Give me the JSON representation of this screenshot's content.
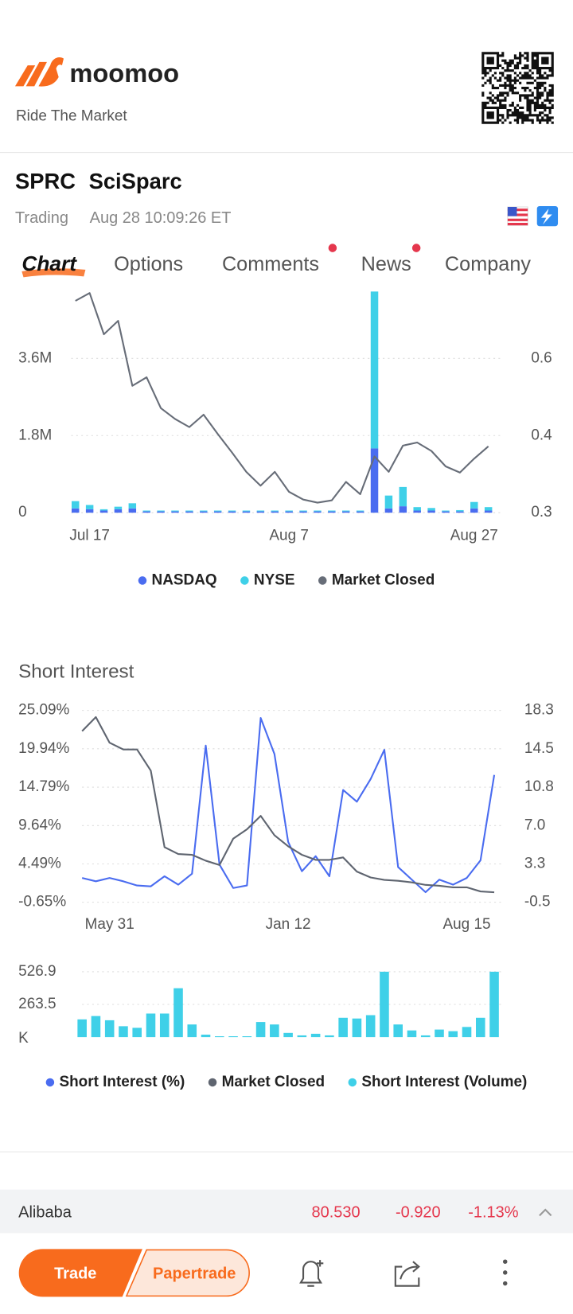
{
  "header": {
    "brand": "moomoo",
    "tagline": "Ride The Market"
  },
  "stock": {
    "symbol": "SPRC",
    "name": "SciSparc",
    "status": "Trading",
    "time": "Aug 28 10:09:26 ET"
  },
  "tabs": [
    "Chart",
    "Options",
    "Comments",
    "News",
    "Company"
  ],
  "chart_data": [
    {
      "type": "bar",
      "stacked": true,
      "categories": [
        null,
        "Jul 17",
        null,
        null,
        null,
        null,
        null,
        null,
        null,
        null,
        null,
        null,
        null,
        null,
        null,
        "Aug 7",
        null,
        null,
        null,
        null,
        null,
        null,
        null,
        null,
        null,
        null,
        null,
        null,
        "Aug 27",
        null
      ],
      "series": [
        {
          "name": "NASDAQ",
          "color": "#4a6cf0",
          "values": [
            100000,
            80000,
            50000,
            80000,
            100000,
            30000,
            30000,
            30000,
            30000,
            30000,
            30000,
            30000,
            30000,
            30000,
            30000,
            30000,
            30000,
            30000,
            30000,
            30000,
            30000,
            1500000,
            100000,
            150000,
            50000,
            50000,
            30000,
            30000,
            100000,
            50000
          ]
        },
        {
          "name": "NYSE",
          "color": "#3fd0e8",
          "values": [
            170000,
            100000,
            30000,
            60000,
            120000,
            20000,
            20000,
            20000,
            20000,
            20000,
            20000,
            20000,
            20000,
            20000,
            20000,
            20000,
            20000,
            20000,
            20000,
            20000,
            20000,
            3660000,
            300000,
            450000,
            80000,
            60000,
            20000,
            30000,
            150000,
            80000
          ]
        },
        {
          "name": "Market Closed",
          "color": "#676d78",
          "type": "line",
          "axis": "y2",
          "values": [
            0.755,
            0.776,
            0.665,
            0.701,
            0.529,
            0.551,
            0.471,
            0.443,
            0.422,
            0.454,
            0.404,
            0.378,
            0.353,
            0.335,
            0.353,
            0.327,
            0.317,
            0.313,
            0.316,
            0.34,
            0.324,
            0.373,
            0.353,
            0.387,
            0.391,
            0.38,
            0.36,
            0.352,
            0.37,
            0.386
          ]
        }
      ],
      "ylim": [
        0,
        5160000
      ],
      "yticks": [
        0,
        {
          "value": 1800000,
          "label": "1.8M"
        },
        {
          "value": 3600000,
          "label": "3.6M"
        }
      ],
      "y2lim": [
        0.3,
        0.78
      ],
      "y2ticks": [
        0.3,
        0.4,
        0.6
      ],
      "grid": true
    },
    {
      "type": "line",
      "title": "Short Interest",
      "categories": [
        null,
        null,
        "May 31",
        null,
        null,
        null,
        null,
        null,
        null,
        null,
        null,
        null,
        null,
        null,
        null,
        "Jan 12",
        null,
        null,
        null,
        null,
        null,
        null,
        null,
        null,
        null,
        null,
        null,
        null,
        "Aug 15",
        null,
        null
      ],
      "series": [
        {
          "name": "Short Interest (%)",
          "color": "#4a6cf0",
          "values": [
            2.61,
            2.16,
            2.61,
            2.16,
            1.6,
            1.49,
            2.83,
            1.71,
            3.17,
            20.37,
            4.41,
            1.26,
            1.6,
            24.08,
            19.25,
            7.44,
            3.51,
            5.53,
            2.83,
            14.41,
            12.84,
            15.87,
            19.81,
            4.07,
            2.38,
            0.7,
            2.38,
            1.71,
            2.61,
            4.97,
            16.43
          ]
        },
        {
          "name": "Market Closed",
          "color": "#5f6570",
          "axis": "y2",
          "values": [
            16.25,
            17.64,
            15.1,
            14.44,
            14.44,
            12.39,
            4.92,
            4.26,
            4.18,
            3.61,
            3.19,
            5.74,
            6.64,
            7.96,
            6.07,
            5.0,
            4.18,
            3.69,
            3.69,
            3.93,
            2.54,
            1.96,
            1.72,
            1.63,
            1.47,
            1.22,
            1.14,
            0.98,
            0.98,
            0.57,
            0.49
          ]
        },
        {
          "name": "Short Interest (Volume)",
          "color": "#3fd0e8",
          "type": "bar",
          "axis": "y3",
          "values": [
            143,
            170,
            136,
            88,
            75,
            190,
            190,
            394,
            102,
            20,
            7,
            7,
            7,
            122,
            102,
            34,
            14,
            27,
            14,
            156,
            150,
            177,
            527,
            102,
            54,
            14,
            61,
            48,
            82,
            156,
            527
          ]
        }
      ],
      "ylim": [
        -0.65,
        25.09
      ],
      "yticks": [
        {
          "value": -0.65,
          "label": "-0.65%"
        },
        {
          "value": 4.49,
          "label": "4.49%"
        },
        {
          "value": 9.64,
          "label": "9.64%"
        },
        {
          "value": 14.79,
          "label": "14.79%"
        },
        {
          "value": 19.94,
          "label": "19.94%"
        },
        {
          "value": 25.09,
          "label": "25.09%"
        }
      ],
      "y2lim": [
        -0.5,
        18.3
      ],
      "y2ticks": [
        -0.5,
        3.3,
        {
          "value": 7,
          "label": "7.0"
        },
        10.8,
        14.5,
        18.3
      ],
      "y3lim": [
        0,
        594
      ],
      "y3ticks": [
        263.5,
        526.9
      ],
      "y3_unit": "K",
      "grid": true
    }
  ],
  "ticker": {
    "name": "Alibaba",
    "price": "80.530",
    "change": "-0.920",
    "change_pct": "-1.13%"
  },
  "actions": [
    "Trade",
    "Papertrade"
  ]
}
